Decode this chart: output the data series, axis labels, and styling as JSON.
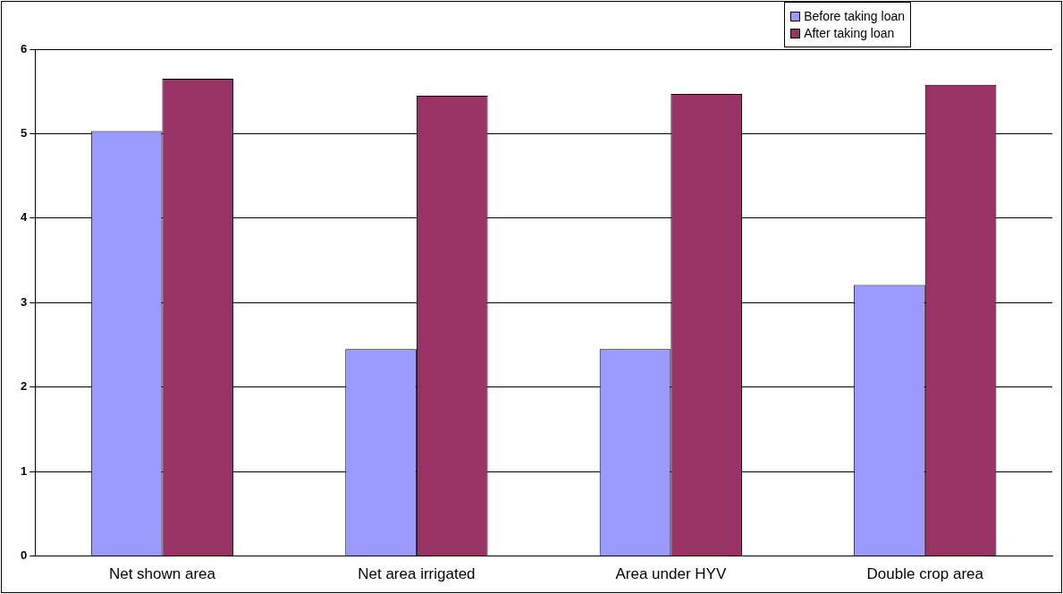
{
  "chart_data": {
    "type": "bar",
    "categories": [
      "Net shown area",
      "Net area irrigated",
      "Area under HYV",
      "Double crop area"
    ],
    "series": [
      {
        "name": "Before taking loan",
        "color": "#9999ff",
        "values": [
          5.03,
          2.45,
          2.45,
          3.21
        ]
      },
      {
        "name": "After taking loan",
        "color": "#993366",
        "values": [
          5.65,
          5.45,
          5.47,
          5.58
        ]
      }
    ],
    "ylim": [
      0,
      6
    ],
    "yticks": [
      0,
      1,
      2,
      3,
      4,
      5,
      6
    ],
    "grid": "y",
    "legend": "top right"
  }
}
